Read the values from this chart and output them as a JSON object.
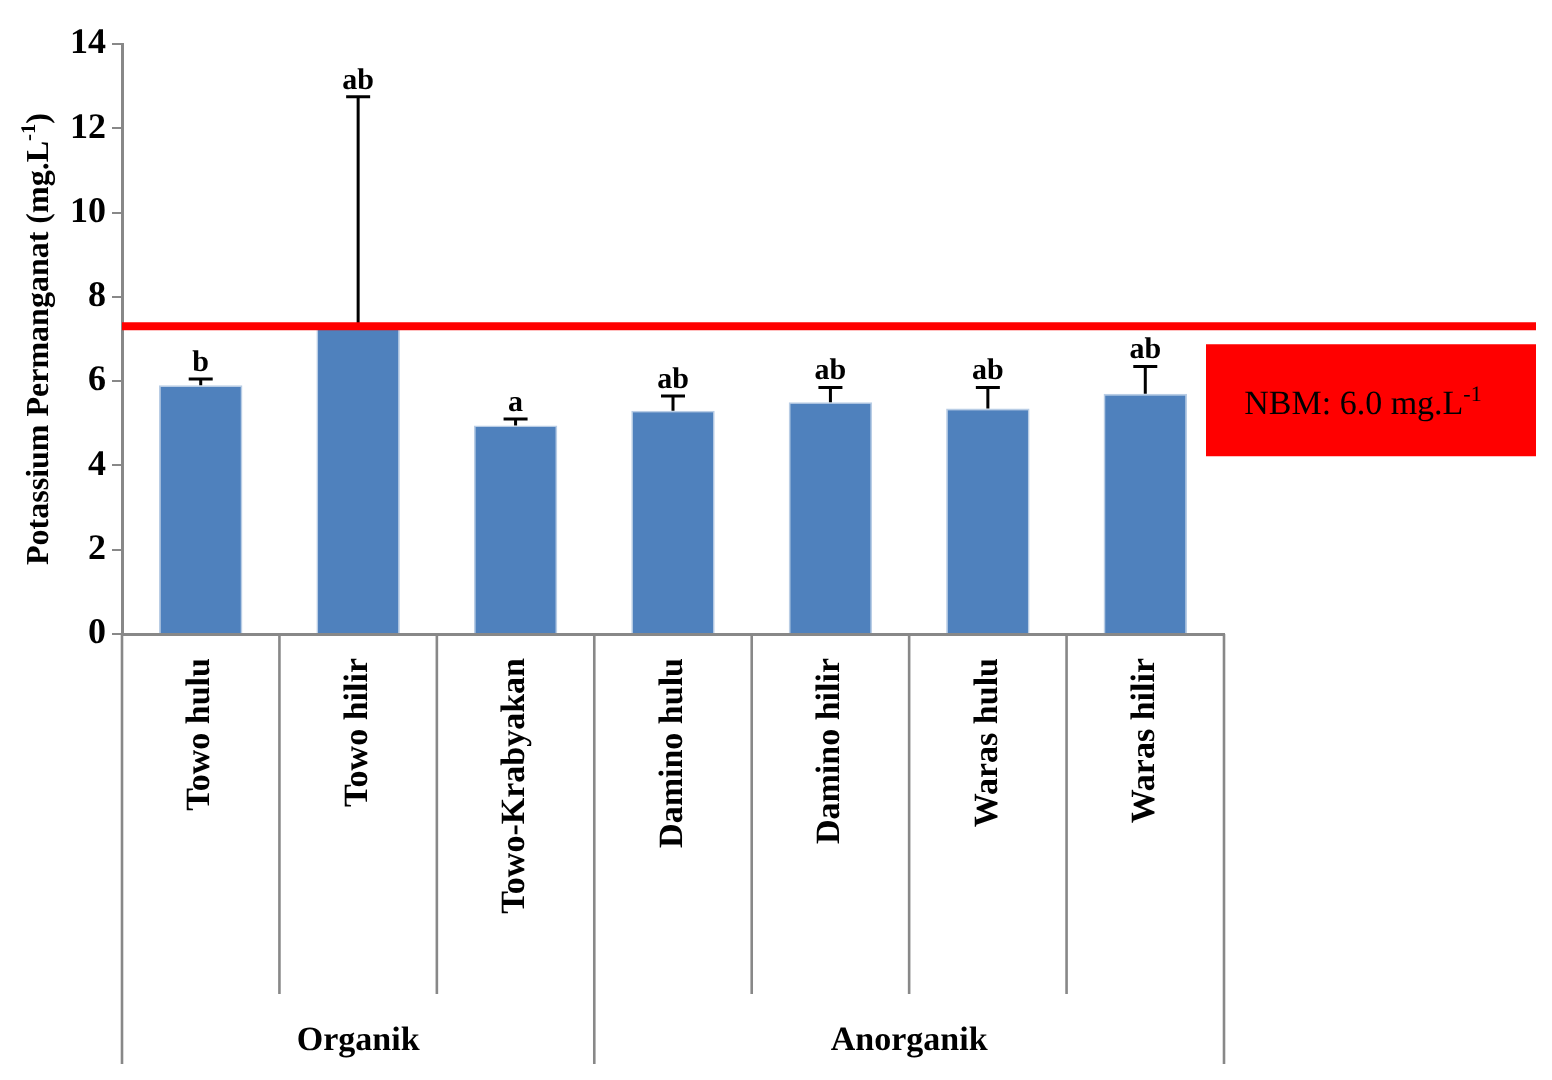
{
  "chart_data": {
    "type": "bar",
    "ylabel": "Potassium Permanganat (mg.L$^{-1}$)",
    "categories": [
      "Towo hulu",
      "Towo hilir",
      "Towo-Krabyakan",
      "Damino hulu",
      "Damino hilir",
      "Waras hulu",
      "Waras hilir"
    ],
    "values": [
      5.9,
      7.3,
      4.95,
      5.3,
      5.5,
      5.35,
      5.7
    ],
    "errors": [
      [
        5.9,
        6.05
      ],
      [
        7.3,
        12.75
      ],
      [
        4.95,
        5.1
      ],
      [
        5.3,
        5.65
      ],
      [
        5.5,
        5.85
      ],
      [
        5.35,
        5.85
      ],
      [
        5.7,
        6.35
      ]
    ],
    "color": "#4f81bd",
    "ylim": [
      0,
      14
    ],
    "yticks": [
      0,
      2,
      4,
      6,
      8,
      10,
      12,
      14
    ],
    "ref_lines": [
      {
        "axis": "y",
        "value": 7.3,
        "color": "#ff0000"
      }
    ],
    "annotations": [
      "b",
      "ab",
      "a",
      "ab",
      "ab",
      "ab",
      "ab",
      "Organik",
      "Anorganik",
      "NBM: 6.0 mg.L$^{-1}$"
    ],
    "grid": false
  }
}
